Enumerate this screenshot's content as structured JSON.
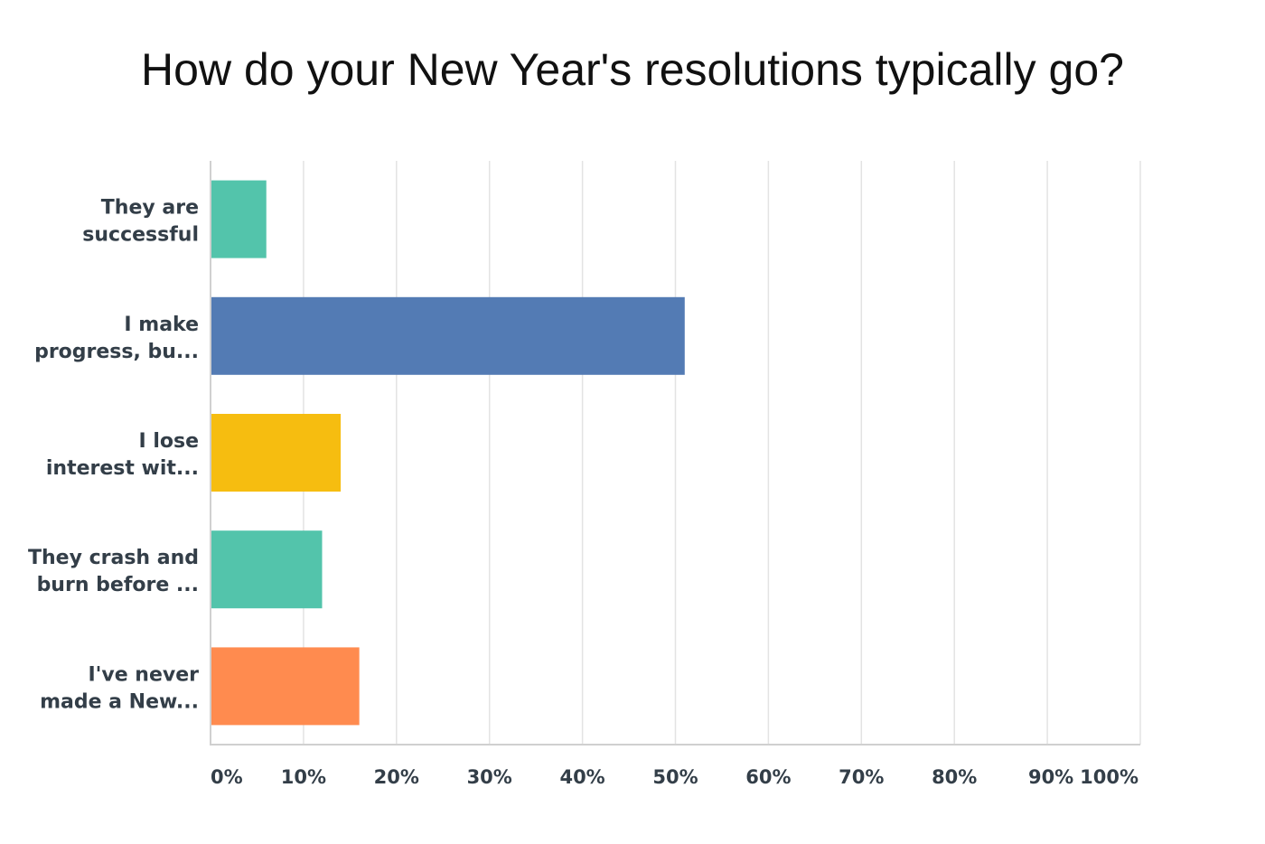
{
  "chart_data": {
    "type": "bar",
    "orientation": "horizontal",
    "title": "How do your New Year's resolutions typically go?",
    "xlabel": "",
    "ylabel": "",
    "categories": [
      [
        "They are",
        "successful"
      ],
      [
        "I make",
        "progress, bu..."
      ],
      [
        "I lose",
        "interest wit..."
      ],
      [
        "They crash and",
        "burn before ..."
      ],
      [
        "I've never",
        "made a New..."
      ]
    ],
    "values": [
      6,
      51,
      14,
      12,
      16
    ],
    "colors": [
      "#53c4ab",
      "#537bb4",
      "#f6bd10",
      "#53c4ab",
      "#ff8b4f"
    ],
    "xlim": [
      0,
      100
    ],
    "ticks": [
      "0%",
      "10%",
      "20%",
      "30%",
      "40%",
      "50%",
      "60%",
      "70%",
      "80%",
      "90%",
      "100%"
    ],
    "grid": true,
    "legend": "none"
  }
}
